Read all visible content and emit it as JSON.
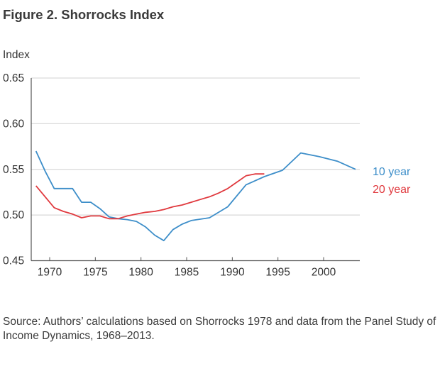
{
  "title": "Figure 2. Shorrocks Index",
  "source": "Source: Authors’ calculations based on Shorrocks 1978 and data from the Panel Study of Income Dynamics, 1968–2013.",
  "chart_data": {
    "type": "line",
    "title": "Figure 2. Shorrocks Index",
    "xlabel": "",
    "ylabel": "Index",
    "xlim": [
      1968,
      2004
    ],
    "ylim": [
      0.45,
      0.65
    ],
    "xticks": [
      1970,
      1975,
      1980,
      1985,
      1990,
      1995,
      2000
    ],
    "xtick_labels": [
      "1970",
      "1975",
      "1980",
      "1985",
      "1990",
      "1995",
      "2000"
    ],
    "yticks": [
      0.45,
      0.5,
      0.55,
      0.6,
      0.65
    ],
    "ytick_labels": [
      "0.45",
      "0.50",
      "0.55",
      "0.60",
      "0.65"
    ],
    "grid": "horizontal",
    "legend": "right",
    "series": [
      {
        "name": "10 year",
        "color": "#3d8ec9",
        "x": [
          1968.5,
          1969.5,
          1970.5,
          1971.5,
          1972.5,
          1973.5,
          1974.5,
          1975.5,
          1976.5,
          1977.5,
          1978.5,
          1979.5,
          1980.5,
          1981.5,
          1982.5,
          1983.5,
          1984.5,
          1985.5,
          1987.5,
          1989.5,
          1991.5,
          1993.5,
          1995.5,
          1997.5,
          1999.5,
          2001.5,
          2003.5
        ],
        "values": [
          0.57,
          0.548,
          0.529,
          0.529,
          0.529,
          0.514,
          0.514,
          0.507,
          0.498,
          0.496,
          0.495,
          0.493,
          0.487,
          0.478,
          0.472,
          0.484,
          0.49,
          0.494,
          0.497,
          0.509,
          0.533,
          0.542,
          0.549,
          0.568,
          0.564,
          0.559,
          0.55
        ]
      },
      {
        "name": "20 year",
        "color": "#e0393e",
        "x": [
          1968.5,
          1970.5,
          1971.5,
          1972.5,
          1973.5,
          1974.5,
          1975.5,
          1976.5,
          1977.5,
          1978.5,
          1979.5,
          1980.5,
          1981.5,
          1982.5,
          1983.5,
          1984.5,
          1985.5,
          1986.5,
          1987.5,
          1988.5,
          1989.5,
          1990.5,
          1991.5,
          1992.5,
          1993.5
        ],
        "values": [
          0.532,
          0.508,
          0.504,
          0.501,
          0.497,
          0.499,
          0.499,
          0.496,
          0.496,
          0.499,
          0.501,
          0.503,
          0.504,
          0.506,
          0.509,
          0.511,
          0.514,
          0.517,
          0.52,
          0.524,
          0.529,
          0.536,
          0.543,
          0.545,
          0.545
        ]
      }
    ]
  }
}
